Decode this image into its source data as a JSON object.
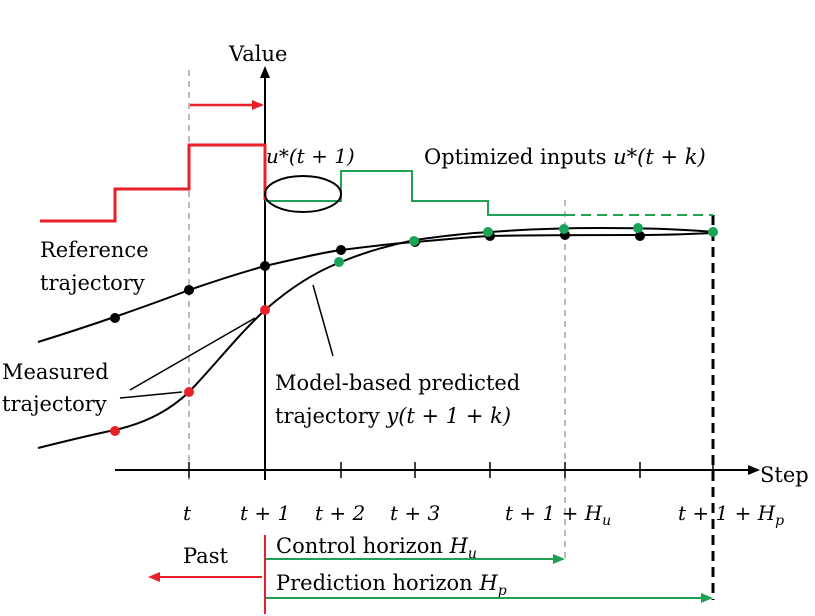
{
  "axes": {
    "y_label": "Value",
    "x_label": "Step"
  },
  "ticks": [
    "t",
    "t + 1",
    "t + 2",
    "t + 3",
    "t + 1 + H_u",
    "t + 1 + H_p"
  ],
  "labels": {
    "u_star": "u*(t + 1)",
    "optimized": "Optimized inputs u*(t + k)",
    "reference_1": "Reference",
    "reference_2": "trajectory",
    "measured_1": "Measured",
    "measured_2": "trajectory",
    "model_1": "Model-based predicted",
    "model_2": "trajectory y(t + 1 + k)"
  },
  "horizons": {
    "past": "Past",
    "control": "Control horizon H_u",
    "prediction": "Prediction horizon H_p"
  },
  "colors": {
    "red": "#e8202a",
    "green": "#1fa254",
    "black": "#000000",
    "dot_green": "#1aa45a"
  }
}
